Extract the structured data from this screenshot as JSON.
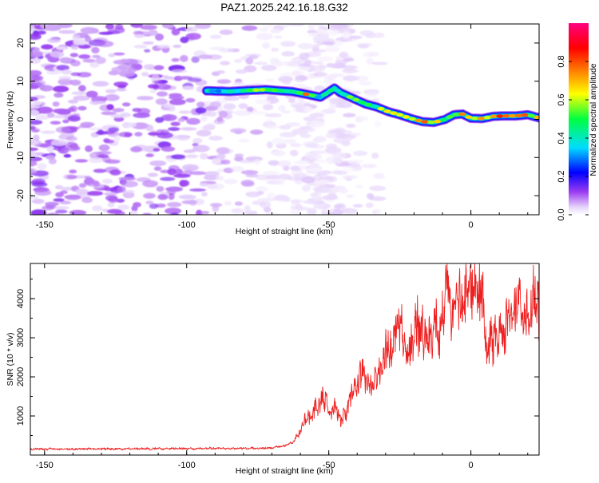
{
  "title": "PAZ1.2025.242.16.18.G32",
  "chart_data": [
    {
      "type": "heatmap",
      "name": "spectrogram",
      "xlabel": "Height of straight line (km)",
      "ylabel": "Frequency (Hz)",
      "xlim": [
        -155,
        24
      ],
      "ylim": [
        -25,
        25
      ],
      "xticks": [
        -150,
        -100,
        -50,
        0
      ],
      "yticks": [
        -20,
        -10,
        0,
        10,
        20
      ],
      "colorbar": {
        "label": "Normalized spectral amplitude",
        "range": [
          0,
          1
        ],
        "ticks": [
          0.0,
          0.2,
          0.4,
          0.6,
          0.8
        ],
        "colors": [
          "#ffffff",
          "#e6d4fb",
          "#9a3cf0",
          "#0000ff",
          "#00dcff",
          "#00ff40",
          "#ffff00",
          "#ff8000",
          "#ff0000",
          "#ff0080"
        ]
      },
      "noise_region_km": [
        -155,
        -62
      ],
      "signal_ridge": {
        "x": [
          -93,
          -85,
          -78,
          -72,
          -67,
          -63,
          -58,
          -53,
          -50,
          -48,
          -46,
          -43,
          -40,
          -37,
          -33,
          -29,
          -25,
          -21,
          -17,
          -13,
          -9,
          -6,
          -3,
          0,
          4,
          8,
          12,
          16,
          20,
          24
        ],
        "freq": [
          7.5,
          7.3,
          7.6,
          7.8,
          7.5,
          7.3,
          6.6,
          5.8,
          7.2,
          8.2,
          7.0,
          6.0,
          5.0,
          4.0,
          3.2,
          2.0,
          1.2,
          0.2,
          -0.6,
          -0.8,
          0.0,
          1.2,
          1.4,
          0.3,
          0.2,
          0.8,
          0.9,
          0.9,
          1.2,
          0.4
        ],
        "amplitude": [
          0.3,
          0.45,
          0.55,
          0.65,
          0.55,
          0.6,
          0.8,
          0.4,
          0.6,
          0.55,
          0.5,
          0.6,
          0.55,
          0.6,
          0.55,
          0.7,
          0.6,
          0.65,
          0.85,
          0.8,
          0.6,
          0.7,
          0.8,
          0.75,
          0.8,
          0.8,
          0.85,
          0.8,
          0.75,
          0.7
        ]
      }
    },
    {
      "type": "line",
      "name": "snr",
      "xlabel": "Height of straight line (km)",
      "ylabel": "SNR (10 * v/v)",
      "xlim": [
        -155,
        24
      ],
      "ylim": [
        0,
        4900
      ],
      "xticks": [
        -150,
        -100,
        -50,
        0
      ],
      "yticks": [
        1000,
        2000,
        3000,
        4000
      ],
      "color": "#ee2020",
      "envelope": {
        "x": [
          -155,
          -130,
          -110,
          -90,
          -80,
          -70,
          -65,
          -62,
          -60,
          -58,
          -56,
          -54,
          -52,
          -50,
          -48,
          -46,
          -44,
          -42,
          -40,
          -38,
          -36,
          -34,
          -32,
          -30,
          -28,
          -26,
          -24,
          -22,
          -20,
          -18,
          -16,
          -14,
          -12,
          -10,
          -8,
          -6,
          -4,
          -2,
          0,
          2,
          4,
          5,
          6,
          8,
          10,
          12,
          14,
          16,
          18,
          20,
          22,
          24
        ],
        "snr": [
          150,
          160,
          160,
          170,
          170,
          180,
          250,
          350,
          600,
          900,
          1050,
          1200,
          1650,
          1000,
          1300,
          900,
          1000,
          1500,
          1600,
          2300,
          1800,
          2000,
          2200,
          2600,
          2500,
          3000,
          3000,
          2700,
          3300,
          3400,
          3000,
          3000,
          3400,
          3800,
          4200,
          3500,
          3800,
          4000,
          4200,
          4350,
          3900,
          2700,
          2750,
          3000,
          3100,
          3250,
          3400,
          3450,
          3550,
          3600,
          3750,
          3900
        ]
      }
    }
  ]
}
